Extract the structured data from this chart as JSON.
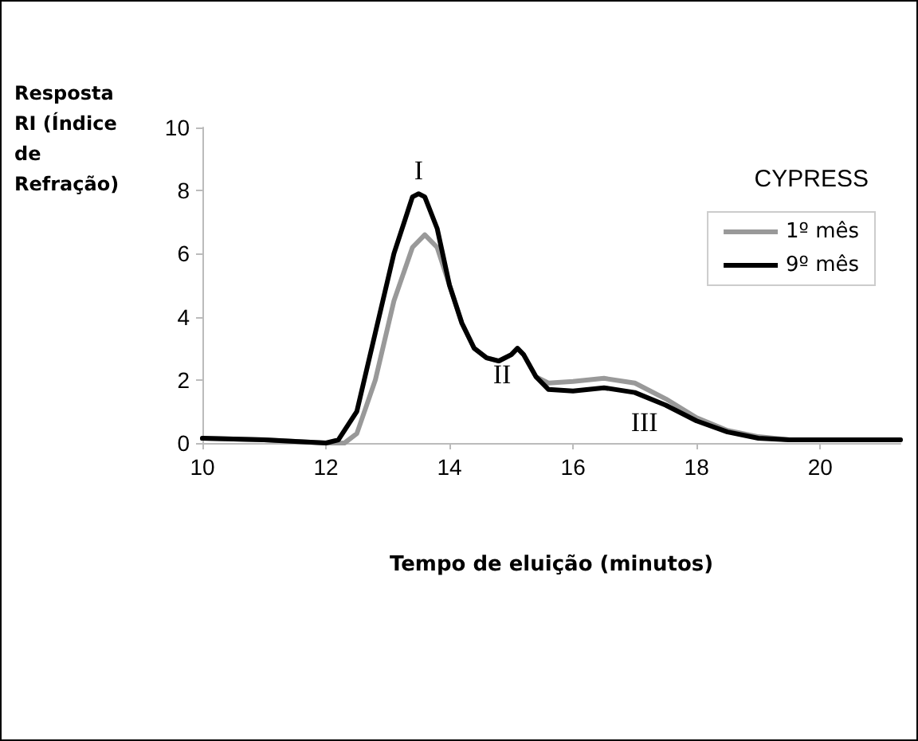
{
  "chart_data": {
    "type": "line",
    "xlabel": "Tempo de eluição (minutos)",
    "ylabel": "Resposta RI (Índice de Refração)",
    "legend_title": "CYPRESS",
    "xlim": [
      10,
      21.3
    ],
    "xticks": [
      10,
      12,
      14,
      16,
      18,
      20
    ],
    "ylim": [
      0,
      10
    ],
    "yticks": [
      0,
      2,
      4,
      6,
      8,
      10
    ],
    "grid": false,
    "legend": "top right",
    "marker": "none",
    "line_style": "solid",
    "series": [
      {
        "name": "1º mês",
        "color": "#999999",
        "x": [
          10,
          11,
          12,
          12.3,
          12.5,
          12.8,
          13.1,
          13.4,
          13.6,
          13.8,
          14.0,
          14.2,
          14.4,
          14.6,
          14.8,
          15.0,
          15.1,
          15.2,
          15.4,
          15.6,
          16,
          16.5,
          17,
          17.5,
          18,
          18.5,
          19,
          19.5,
          20,
          21.3
        ],
        "values": [
          0.15,
          0.1,
          0,
          0,
          0.3,
          2,
          4.5,
          6.2,
          6.6,
          6.2,
          5,
          3.8,
          3,
          2.7,
          2.6,
          2.8,
          3.0,
          2.8,
          2.1,
          1.9,
          1.95,
          2.05,
          1.9,
          1.4,
          0.8,
          0.4,
          0.2,
          0.1,
          0.1,
          0.1
        ]
      },
      {
        "name": "9º mês",
        "color": "#000000",
        "x": [
          10,
          11,
          12,
          12.2,
          12.5,
          12.8,
          13.1,
          13.4,
          13.5,
          13.6,
          13.8,
          14.0,
          14.2,
          14.4,
          14.6,
          14.8,
          15.0,
          15.1,
          15.2,
          15.4,
          15.6,
          16,
          16.5,
          17,
          17.5,
          18,
          18.5,
          19,
          19.5,
          20,
          21.3
        ],
        "values": [
          0.15,
          0.1,
          0,
          0.1,
          1,
          3.5,
          6,
          7.8,
          7.9,
          7.8,
          6.8,
          5,
          3.8,
          3,
          2.7,
          2.6,
          2.8,
          3.0,
          2.8,
          2.1,
          1.7,
          1.65,
          1.75,
          1.6,
          1.2,
          0.7,
          0.35,
          0.15,
          0.1,
          0.1,
          0.1
        ]
      }
    ],
    "annotations": [
      {
        "text": "I",
        "x": 13.5,
        "y": 7.9
      },
      {
        "text": "II",
        "x": 15.1,
        "y": 3.0
      },
      {
        "text": "III",
        "x": 17,
        "y": 1.6
      }
    ]
  }
}
